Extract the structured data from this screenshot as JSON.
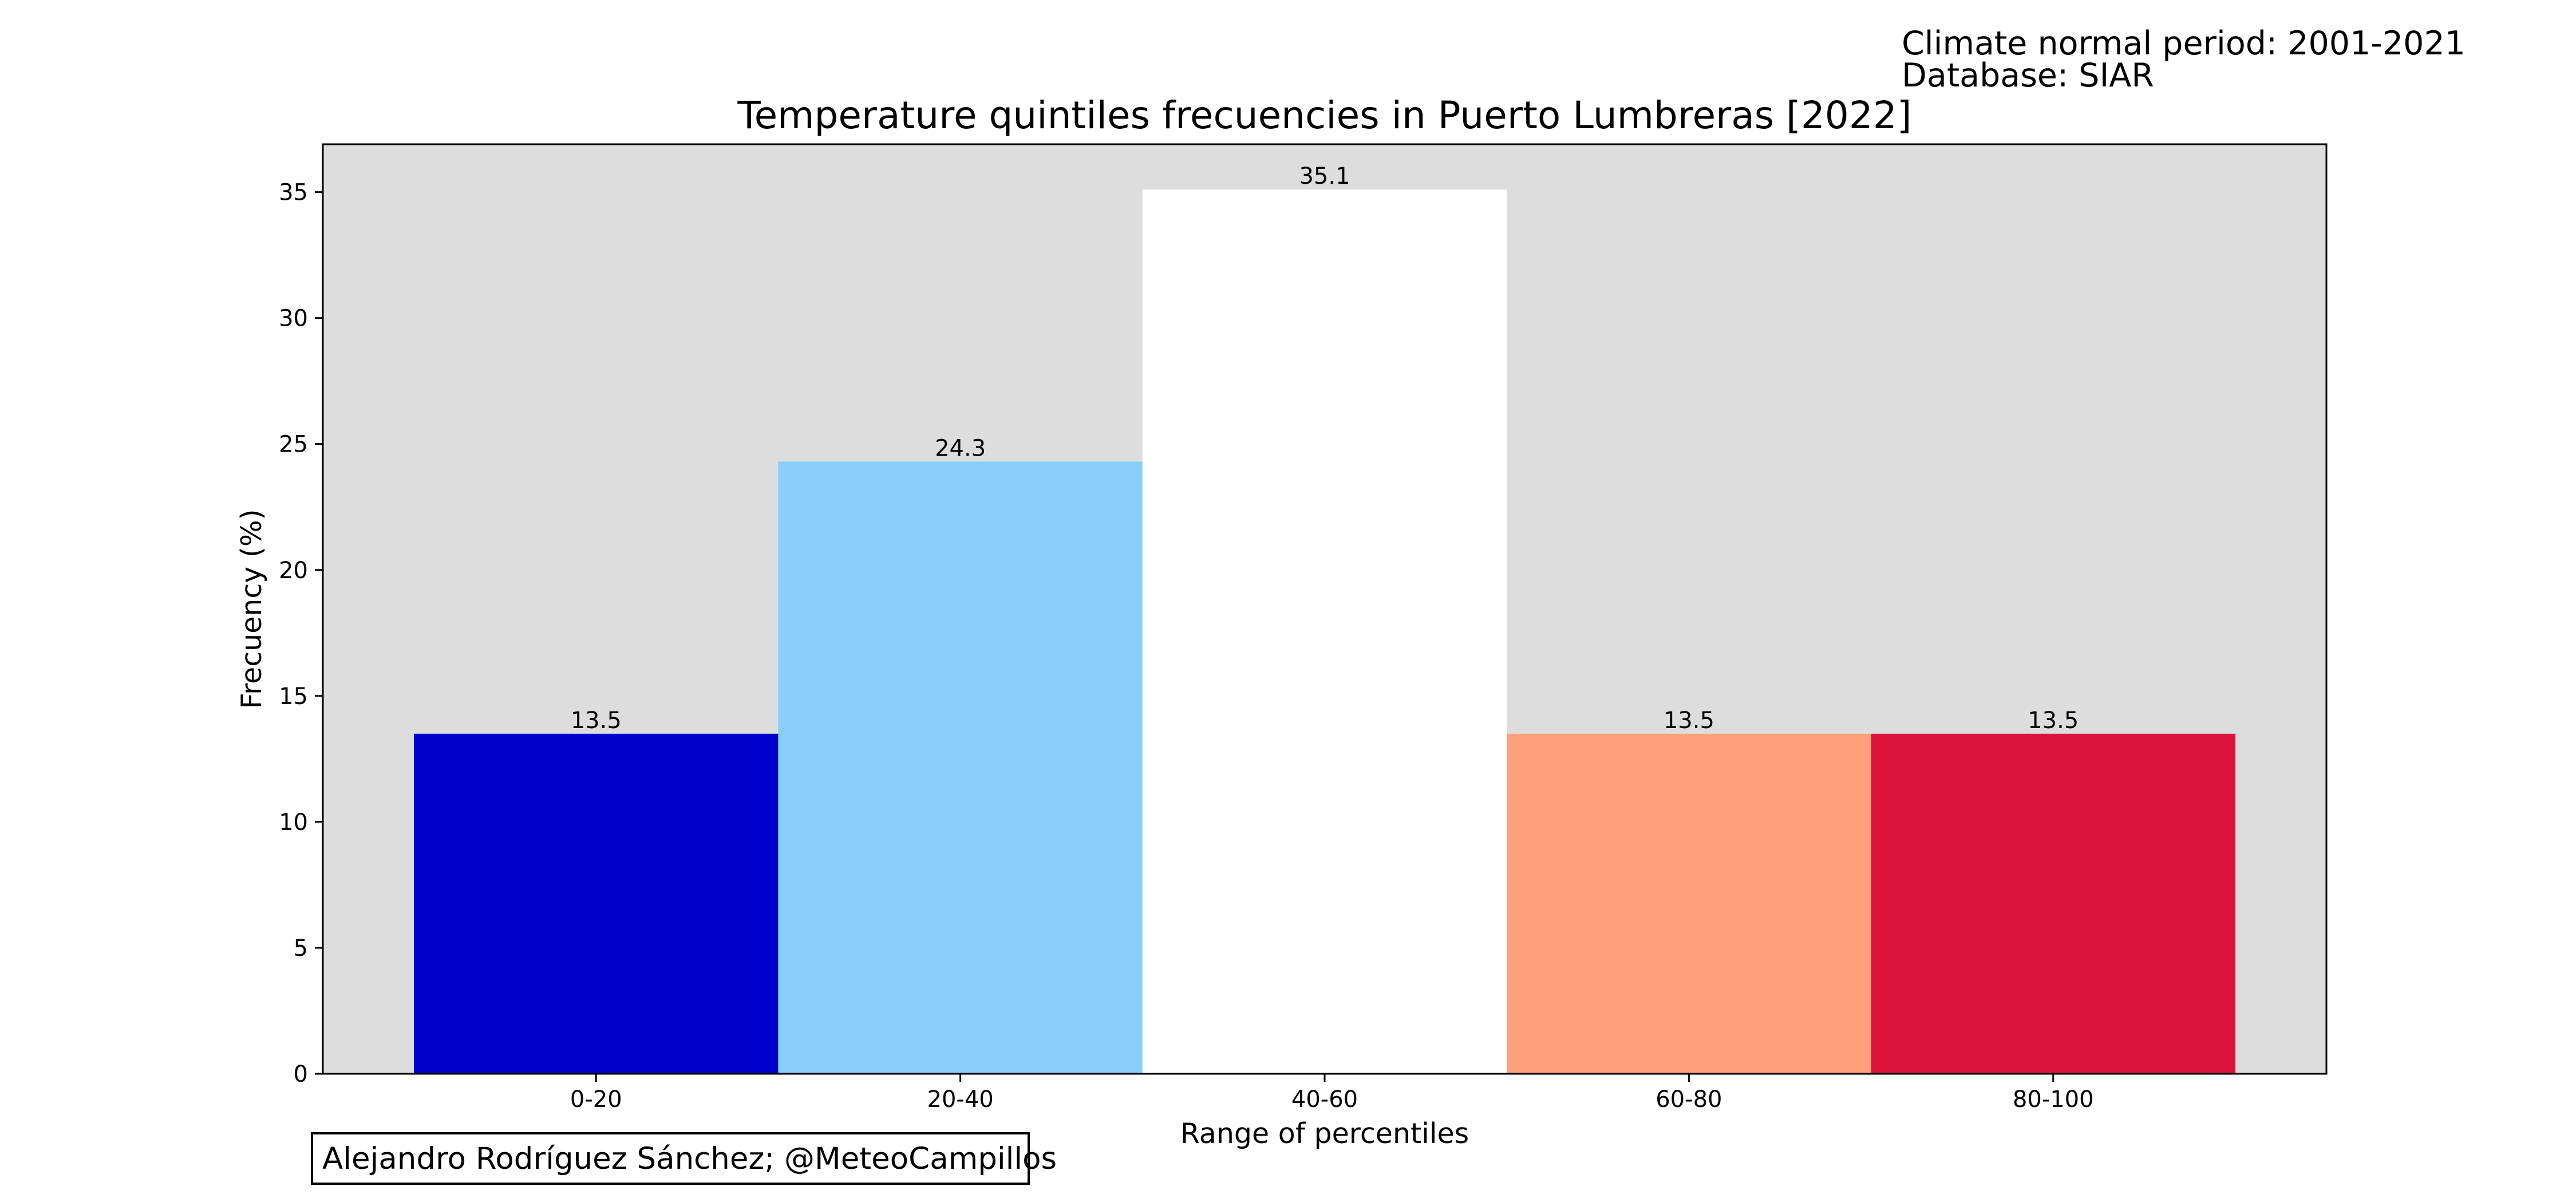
{
  "info": {
    "period": "Climate normal period: 2001-2021",
    "database": "Database: SIAR"
  },
  "credit": "Alejandro Rodríguez Sánchez; @MeteoCampillos",
  "chart_data": {
    "type": "bar",
    "title": "Temperature quintiles frecuencies in Puerto Lumbreras [2022]",
    "xlabel": "Range of percentiles",
    "ylabel": "Frecuency (%)",
    "categories": [
      "0-20",
      "20-40",
      "40-60",
      "60-80",
      "80-100"
    ],
    "values": [
      13.5,
      24.3,
      35.1,
      13.5,
      13.5
    ],
    "value_labels": [
      "13.5",
      "24.3",
      "35.1",
      "13.5",
      "13.5"
    ],
    "bar_colors": [
      "#0000cd",
      "#87cefa",
      "#ffffff",
      "#ffa07a",
      "#dc143c"
    ],
    "ylim": [
      0,
      36.9
    ],
    "yticks": [
      0,
      5,
      10,
      15,
      20,
      25,
      30,
      35
    ],
    "xlim": [
      -0.75,
      4.75
    ],
    "bar_width": 1.0,
    "plot_background": "#dddddd",
    "grid": false,
    "legend": "none"
  }
}
